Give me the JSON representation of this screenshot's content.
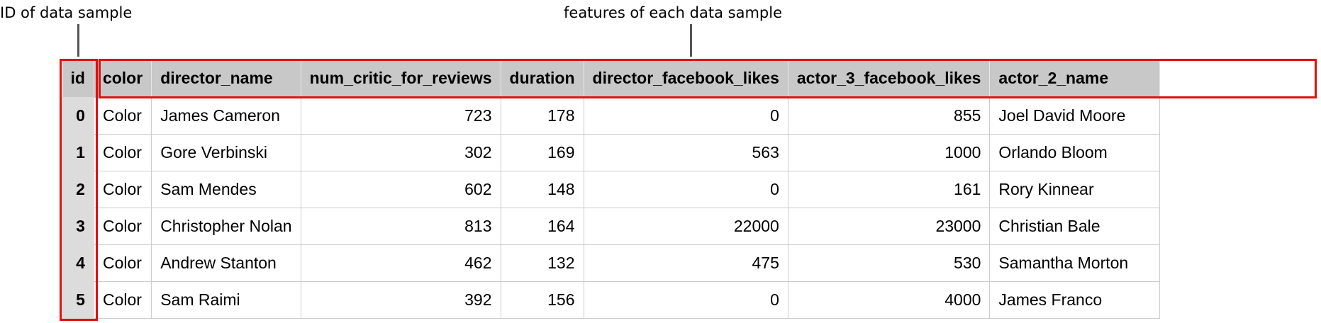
{
  "annotations": {
    "id_label": "ID of data sample",
    "features_label": "features of each data sample"
  },
  "table": {
    "columns": [
      "id",
      "color",
      "director_name",
      "num_critic_for_reviews",
      "duration",
      "director_facebook_likes",
      "actor_3_facebook_likes",
      "actor_2_name"
    ],
    "numeric_columns": [
      3,
      4,
      5,
      6
    ],
    "rows": [
      [
        "0",
        "Color",
        "James Cameron",
        "723",
        "178",
        "0",
        "855",
        "Joel David Moore"
      ],
      [
        "1",
        "Color",
        "Gore Verbinski",
        "302",
        "169",
        "563",
        "1000",
        "Orlando Bloom"
      ],
      [
        "2",
        "Color",
        "Sam Mendes",
        "602",
        "148",
        "0",
        "161",
        "Rory Kinnear"
      ],
      [
        "3",
        "Color",
        "Christopher Nolan",
        "813",
        "164",
        "22000",
        "23000",
        "Christian Bale"
      ],
      [
        "4",
        "Color",
        "Andrew Stanton",
        "462",
        "132",
        "475",
        "530",
        "Samantha Morton"
      ],
      [
        "5",
        "Color",
        "Sam Raimi",
        "392",
        "156",
        "0",
        "4000",
        "James Franco"
      ]
    ]
  },
  "colors": {
    "highlight": "#e01010",
    "header_bg": "#c8c8c8",
    "id_bg": "#dcdcdc"
  }
}
